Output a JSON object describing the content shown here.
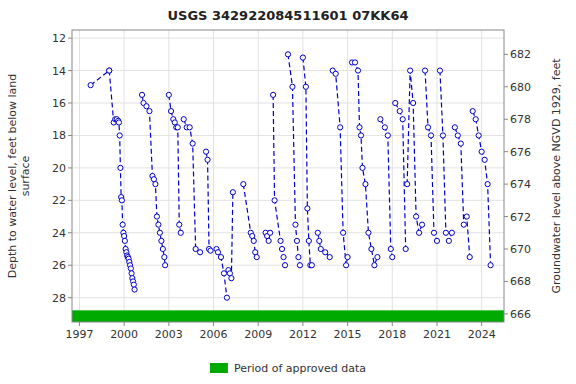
{
  "chart_data": {
    "type": "line",
    "title": "USGS 342922084511601 07KK64",
    "y_label": "Depth to water level, feet below land\nsurface",
    "y2_label": "Groundwater level above NGVD 1929, feet",
    "xlim": [
      1996.5,
      2025.5
    ],
    "xticks": [
      1997,
      2000,
      2003,
      2006,
      2009,
      2012,
      2015,
      2018,
      2021,
      2024
    ],
    "ylim": [
      29.5,
      11.5
    ],
    "yticks": [
      12,
      14,
      16,
      18,
      20,
      22,
      24,
      26,
      28
    ],
    "y2lim": [
      665.5,
      683.5
    ],
    "y2ticks": [
      666,
      668,
      670,
      672,
      674,
      676,
      678,
      680,
      682
    ],
    "grid": true,
    "legend": "bottom",
    "series": [
      {
        "type": "line",
        "color": "#0000CC",
        "line_style": "dashed",
        "marker": "open-circle",
        "x": [
          1997.75,
          1999.0,
          null,
          1999.0,
          1999.3,
          1999.4,
          1999.5,
          1999.6,
          1999.65,
          1999.7,
          1999.75,
          1999.8,
          1999.85,
          1999.9,
          1999.95,
          2000.0,
          2000.05,
          2000.1,
          2000.15,
          2000.2,
          2000.25,
          2000.3,
          2000.35,
          2000.4,
          2000.45,
          2000.5,
          2000.55,
          2000.6,
          2000.65,
          2000.7,
          null,
          2001.2,
          2001.3,
          2001.5,
          2001.7,
          2001.9,
          2002.0,
          2002.1,
          2002.2,
          2002.3,
          2002.4,
          2002.5,
          2002.6,
          2002.7,
          2002.75,
          null,
          2003.0,
          2003.15,
          2003.3,
          2003.4,
          2003.5,
          2003.6,
          2003.7,
          2003.8,
          null,
          2004.0,
          2004.2,
          2004.4,
          2004.6,
          2004.8,
          2005.1,
          null,
          2005.5,
          2005.6,
          2005.7,
          2005.8,
          null,
          2006.2,
          2006.3,
          2006.5,
          2006.7,
          2006.9,
          null,
          2007.0,
          2007.1,
          2007.2,
          2007.3,
          null,
          2008.0,
          2008.5,
          2008.6,
          2008.7,
          2008.8,
          2008.9,
          null,
          2009.5,
          2009.6,
          2009.7,
          2009.8,
          null,
          2010.0,
          2010.1,
          2010.5,
          2010.6,
          2010.7,
          2010.8,
          null,
          2011.0,
          2011.3,
          2011.5,
          2011.6,
          2011.7,
          2011.8,
          null,
          2012.0,
          2012.2,
          2012.3,
          2012.4,
          2012.5,
          2012.6,
          null,
          2013.0,
          2013.1,
          2013.2,
          2013.5,
          2013.8,
          null,
          2014.0,
          2014.2,
          2014.5,
          2014.7,
          2014.9,
          2015.0,
          null,
          2015.3,
          2015.5,
          2015.7,
          2015.8,
          2015.9,
          2016.0,
          2016.2,
          2016.4,
          2016.6,
          2016.8,
          2017.0,
          null,
          2017.2,
          2017.5,
          2017.7,
          2017.9,
          2018.0,
          null,
          2018.2,
          2018.5,
          2018.7,
          2018.9,
          null,
          2019.0,
          2019.2,
          2019.4,
          2019.6,
          2019.8,
          2020.0,
          null,
          2020.2,
          2020.4,
          2020.6,
          2020.8,
          2021.0,
          null,
          2021.2,
          2021.4,
          2021.6,
          2021.8,
          2022.0,
          null,
          2022.2,
          2022.4,
          2022.6,
          2022.8,
          2023.0,
          2023.2,
          null,
          2023.4,
          2023.6,
          2023.8,
          2024.0,
          2024.2,
          2024.4,
          2024.6
        ],
        "values": [
          14.9,
          14.0,
          null,
          14.0,
          17.2,
          17.0,
          17.0,
          17.1,
          17.2,
          18.0,
          20.0,
          21.8,
          22.0,
          23.5,
          24.0,
          24.2,
          24.5,
          25.0,
          25.2,
          25.4,
          25.5,
          25.6,
          25.8,
          26.0,
          26.2,
          26.5,
          26.8,
          27.0,
          27.2,
          27.5,
          null,
          15.5,
          16.0,
          16.2,
          16.5,
          20.5,
          20.7,
          21.0,
          23.0,
          23.5,
          24.0,
          24.5,
          25.0,
          25.5,
          26.0,
          null,
          15.5,
          16.5,
          17.0,
          17.2,
          17.5,
          17.5,
          23.5,
          24.0,
          null,
          17.0,
          17.5,
          17.5,
          18.5,
          25.0,
          25.2,
          null,
          19.0,
          19.5,
          25.0,
          25.1,
          null,
          25.0,
          25.2,
          25.5,
          26.5,
          28.0,
          null,
          26.3,
          26.5,
          26.8,
          21.5,
          null,
          21.0,
          24.0,
          24.2,
          24.5,
          25.2,
          25.5,
          null,
          24.0,
          24.2,
          24.5,
          24.0,
          null,
          15.5,
          22.0,
          24.5,
          25.0,
          25.5,
          26.0,
          null,
          13.0,
          15.0,
          23.5,
          24.5,
          25.5,
          26.0,
          null,
          13.2,
          15.0,
          22.5,
          24.5,
          26.0,
          26.0,
          null,
          24.0,
          24.5,
          25.0,
          25.2,
          25.5,
          null,
          14.0,
          14.2,
          17.5,
          24.0,
          26.0,
          25.5,
          null,
          13.5,
          13.5,
          14.0,
          17.5,
          18.0,
          20.0,
          21.0,
          24.0,
          25.0,
          26.0,
          25.5,
          null,
          17.0,
          17.5,
          18.0,
          25.0,
          25.5,
          null,
          16.0,
          16.5,
          17.0,
          25.0,
          null,
          21.0,
          14.0,
          16.0,
          23.0,
          24.0,
          23.5,
          null,
          14.0,
          17.5,
          18.0,
          24.0,
          24.5,
          null,
          14.0,
          18.0,
          24.0,
          24.5,
          24.0,
          null,
          17.5,
          18.0,
          18.5,
          23.5,
          23.0,
          25.5,
          null,
          16.5,
          17.0,
          18.0,
          19.0,
          19.5,
          21.0,
          26.0
        ]
      },
      {
        "type": "band",
        "name": "Period of approved data",
        "color": "#00AA00"
      }
    ]
  }
}
